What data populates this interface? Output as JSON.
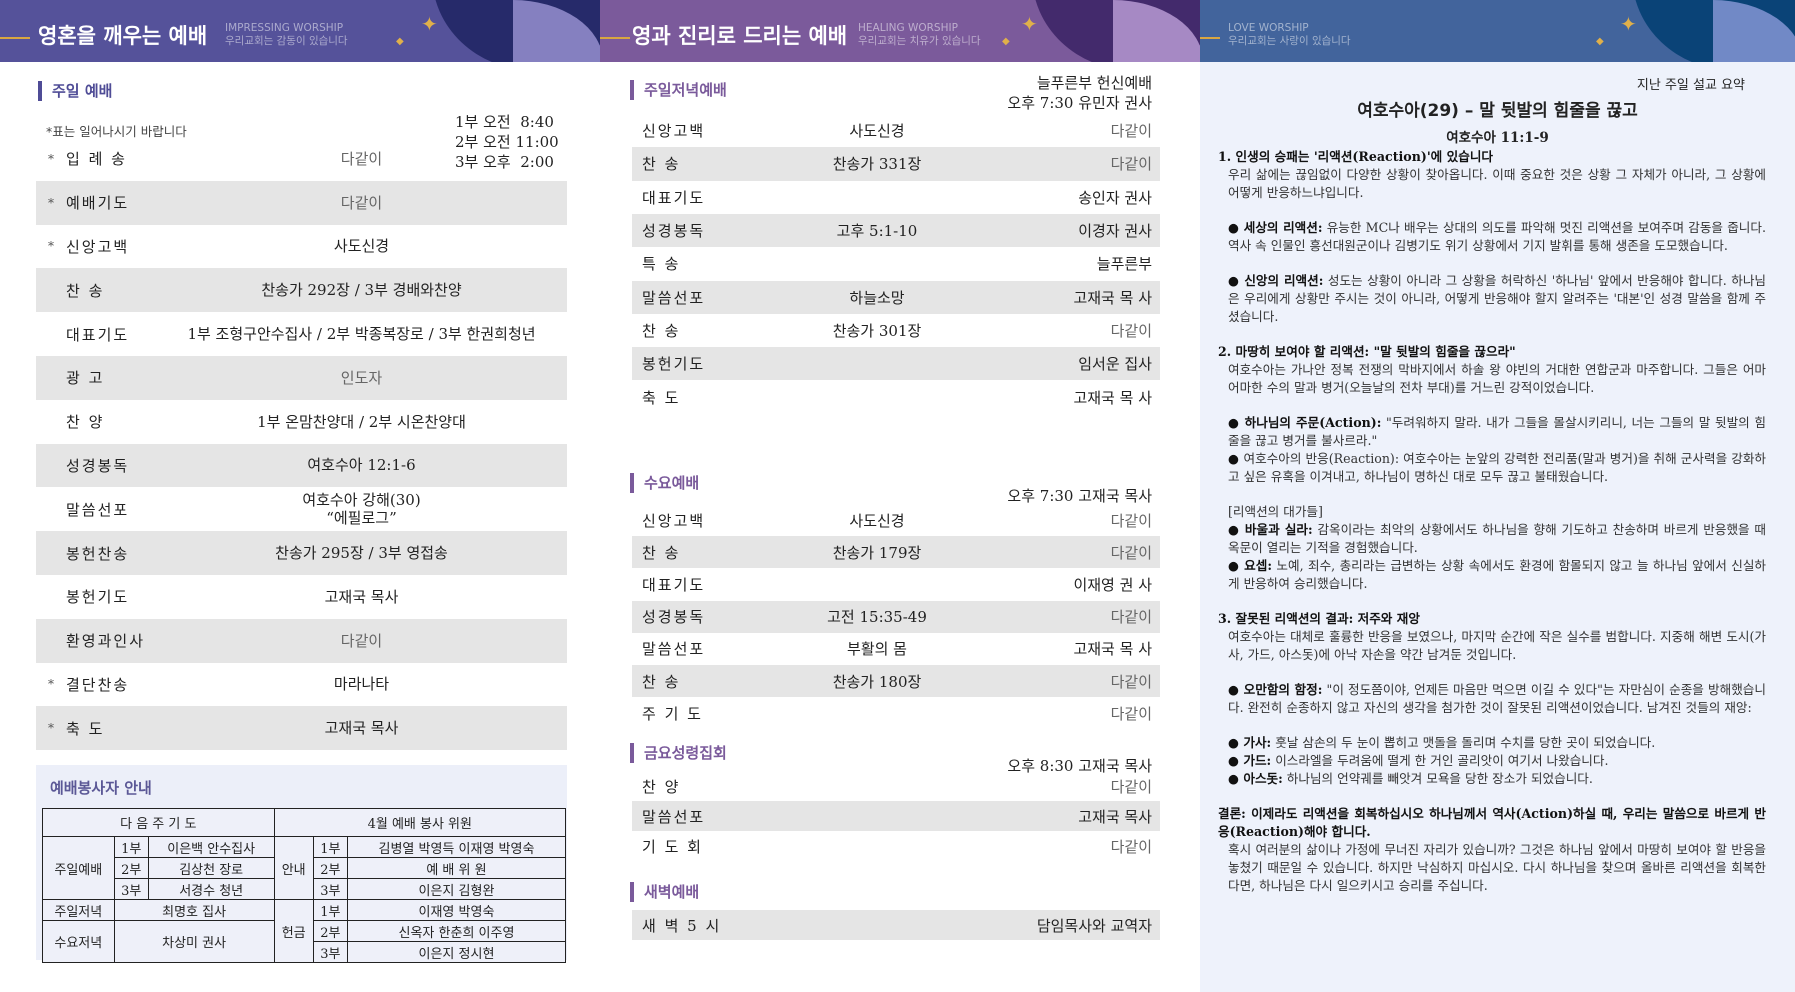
{
  "colors": {
    "left_header": "#55529a",
    "mid_header": "#7b5a9b",
    "right_header": "#42649c",
    "row_shade": "#e5e5e5",
    "accent_gold": "#d9a640"
  },
  "panel1": {
    "header": {
      "title": "영혼을 깨우는 예배",
      "sub_en": "IMPRESSING WORSHIP",
      "sub_ko": "우리교회는 감동이 있습니다"
    },
    "section_title": "주일 예배",
    "times": [
      "1부 오전  8:40",
      "2부 오전 11:00",
      "3부 오후  2:00"
    ],
    "note": "*표는 일어나시기 바랍니다",
    "rows": [
      {
        "star": "*",
        "label": "입 례 송",
        "value": "다같이"
      },
      {
        "star": "*",
        "label": "예배기도",
        "value": "다같이"
      },
      {
        "star": "*",
        "label": "신앙고백",
        "value": "사도신경"
      },
      {
        "star": "",
        "label": "찬    송",
        "value": "찬송가 292장 / 3부 경배와찬양"
      },
      {
        "star": "",
        "label": "대표기도",
        "value": "1부 조형구안수집사 / 2부 박종복장로 / 3부 한권희청년"
      },
      {
        "star": "",
        "label": "광    고",
        "value": "인도자"
      },
      {
        "star": "",
        "label": "찬    양",
        "value": "1부 온맘찬양대 / 2부 시온찬양대"
      },
      {
        "star": "",
        "label": "성경봉독",
        "value": "여호수아 12:1-6"
      },
      {
        "star": "",
        "label": "말씀선포",
        "value": "여호수아 강해(30)\n“에필로그”"
      },
      {
        "star": "",
        "label": "봉헌찬송",
        "value": "찬송가 295장  /  3부 영접송"
      },
      {
        "star": "",
        "label": "봉헌기도",
        "value": "고재국 목사"
      },
      {
        "star": "",
        "label": "환영과인사",
        "value": "다같이"
      },
      {
        "star": "*",
        "label": "결단찬송",
        "value": "마라나타"
      },
      {
        "star": "*",
        "label": "축    도",
        "value": "고재국 목사"
      }
    ],
    "volunteers": {
      "title": "예배봉사자 안내",
      "head_left": "다 음 주 기 도",
      "head_right": "4월 예배 봉사 위원",
      "prayer": [
        {
          "group": "주일예배",
          "part": "1부",
          "name": "이은백 안수집사"
        },
        {
          "group": "주일예배",
          "part": "2부",
          "name": "김상천 장로"
        },
        {
          "group": "주일예배",
          "part": "3부",
          "name": "서경수 청년"
        },
        {
          "group": "주일저녁",
          "part": "",
          "name": "최명호 집사"
        },
        {
          "group": "수요저녁",
          "part": "",
          "name": "차상미 권사"
        }
      ],
      "service": [
        {
          "role": "안내",
          "part": "1부",
          "names": "김병열 박영득 이재영 박영숙"
        },
        {
          "role": "안내",
          "part": "2부",
          "names": "예 배 위 원"
        },
        {
          "role": "안내",
          "part": "3부",
          "names": "이은지 김형완"
        },
        {
          "role": "헌금",
          "part": "1부",
          "names": "이재영 박영숙"
        },
        {
          "role": "헌금",
          "part": "2부",
          "names": "신옥자 한춘희 이주영"
        },
        {
          "role": "헌금",
          "part": "3부",
          "names": "이은지 정시현"
        }
      ]
    }
  },
  "panel2": {
    "header": {
      "title": "영과 진리로 드리는 예배",
      "sub_en": "HEALING WORSHIP",
      "sub_ko": "우리교회는 치유가 있습니다"
    },
    "sunday_evening": {
      "title": "주일저녁예배",
      "info1": "늘푸른부 헌신예배",
      "info2": "오후 7:30 유민자 권사",
      "rows": [
        {
          "label": "신앙고백",
          "value": "사도신경",
          "who": "다같이"
        },
        {
          "label": "찬     송",
          "value": "찬송가 331장",
          "who": "다같이"
        },
        {
          "label": "대표기도",
          "value": "",
          "who": "송인자 권사"
        },
        {
          "label": "성경봉독",
          "value": "고후 5:1-10",
          "who": "이경자 권사"
        },
        {
          "label": "특     송",
          "value": "",
          "who": "늘푸른부"
        },
        {
          "label": "말씀선포",
          "value": "하늘소망",
          "who": "고재국 목  사"
        },
        {
          "label": "찬     송",
          "value": "찬송가 301장",
          "who": "다같이"
        },
        {
          "label": "봉헌기도",
          "value": "",
          "who": "임서운 집사"
        },
        {
          "label": "축     도",
          "value": "",
          "who": "고재국 목  사"
        }
      ]
    },
    "wednesday": {
      "title": "수요예배",
      "info": "오후 7:30 고재국 목사",
      "rows": [
        {
          "label": "신앙고백",
          "value": "사도신경",
          "who": "다같이"
        },
        {
          "label": "찬     송",
          "value": "찬송가 179장",
          "who": "다같이"
        },
        {
          "label": "대표기도",
          "value": "",
          "who": "이재영 권  사"
        },
        {
          "label": "성경봉독",
          "value": "고전 15:35-49",
          "who": "다같이"
        },
        {
          "label": "말씀선포",
          "value": "부활의 몸",
          "who": "고재국 목  사"
        },
        {
          "label": "찬     송",
          "value": "찬송가 180장",
          "who": "다같이"
        },
        {
          "label": "주 기 도",
          "value": "",
          "who": "다같이"
        }
      ]
    },
    "friday": {
      "title": "금요성령집회",
      "info": "오후 8:30 고재국 목사",
      "rows": [
        {
          "label": "찬     양",
          "value": "",
          "who": "다같이"
        },
        {
          "label": "말씀선포",
          "value": "",
          "who": "고재국 목사"
        },
        {
          "label": "기 도 회",
          "value": "",
          "who": "다같이"
        }
      ]
    },
    "dawn": {
      "title": "새벽예배",
      "rows": [
        {
          "label": "새 벽 5 시",
          "value": "",
          "who": "담임목사와 교역자"
        }
      ]
    }
  },
  "panel3": {
    "header": {
      "sub_en": "LOVE WORSHIP",
      "sub_ko": "우리교회는 사랑이 있습니다"
    },
    "kicker": "지난 주일 설교 요약",
    "title": "여호수아(29) – 말 뒷발의 힘줄을 끊고",
    "scripture": "여호수아  11:1-9",
    "blocks": [
      {
        "type": "h",
        "text": "1. 인생의 승패는 '리액션(Reaction)'에 있습니다"
      },
      {
        "type": "p",
        "text": "우리 삶에는 끊임없이 다양한 상황이 찾아옵니다. 이때 중요한 것은 상황 그 자체가 아니라, 그 상황에 어떻게 반응하느냐입니다."
      },
      {
        "type": "gap"
      },
      {
        "type": "b",
        "lead": "● 세상의 리액션:",
        "text": " 유능한 MC나 배우는 상대의 의도를 파악해 멋진 리액션을 보여주며 감동을 줍니다. 역사 속 인물인 흥선대원군이나 김병기도 위기 상황에서 기지 발휘를 통해 생존을 도모했습니다."
      },
      {
        "type": "gap"
      },
      {
        "type": "b",
        "lead": "● 신앙의 리액션:",
        "text": " 성도는 상황이 아니라 그 상황을 허락하신 '하나님' 앞에서 반응해야 합니다. 하나님은 우리에게 상황만 주시는 것이 아니라, 어떻게 반응해야 할지 알려주는 '대본'인 성경 말씀을 함께 주셨습니다."
      },
      {
        "type": "gap"
      },
      {
        "type": "h",
        "text": "2. 마땅히 보여야 할 리액션: \"말 뒷발의 힘줄을 끊으라\""
      },
      {
        "type": "p",
        "text": "여호수아는 가나안 정복 전쟁의 막바지에서 하솔 왕 야빈의 거대한 연합군과 마주합니다. 그들은 어마어마한 수의 말과 병거(오늘날의 전차 부대)를 거느린 강적이었습니다."
      },
      {
        "type": "gap"
      },
      {
        "type": "b",
        "lead": "● 하나님의 주문(Action):",
        "text": " \"두려워하지 말라. 내가 그들을 몰살시키리니, 너는 그들의 말 뒷발의 힘줄을 끊고 병거를 불사르라.\""
      },
      {
        "type": "b",
        "lead": "● ",
        "text": "여호수아의 반응(Reaction): 여호수아는 눈앞의 강력한 전리품(말과 병거)을 취해 군사력을 강화하고 싶은 유혹을 이겨내고, 하나님이 명하신 대로 모두 끊고 불태웠습니다."
      },
      {
        "type": "gap"
      },
      {
        "type": "p",
        "text": "[리액션의 대가들]"
      },
      {
        "type": "b",
        "lead": "● 바울과 실라:",
        "text": " 감옥이라는 최악의 상황에서도 하나님을 향해 기도하고 찬송하며 바르게 반응했을 때 옥문이 열리는 기적을 경험했습니다."
      },
      {
        "type": "b",
        "lead": "● 요셉:",
        "text": " 노예, 죄수, 총리라는 급변하는 상황 속에서도 환경에 함몰되지 않고 늘 하나님 앞에서 신실하게 반응하여 승리했습니다."
      },
      {
        "type": "gap"
      },
      {
        "type": "h",
        "text": "3. 잘못된 리액션의 결과: 저주와 재앙"
      },
      {
        "type": "p",
        "text": "여호수아는 대체로 훌륭한 반응을 보였으나, 마지막 순간에 작은 실수를 범합니다. 지중해 해변 도시(가사, 가드, 아스돗)에 아낙 자손을 약간 남겨둔 것입니다."
      },
      {
        "type": "gap"
      },
      {
        "type": "b",
        "lead": "● 오만함의 함정:",
        "text": " \"이 정도쯤이야, 언제든 마음만 먹으면 이길 수 있다\"는 자만심이 순종을 방해했습니다. 완전히 순종하지 않고 자신의 생각을 첨가한 것이 잘못된 리액션이었습니다. 남겨진 것들의 재앙:"
      },
      {
        "type": "gap"
      },
      {
        "type": "b",
        "lead": "● 가사:",
        "text": " 훗날 삼손의 두 눈이 뽑히고 맷돌을 돌리며 수치를 당한 곳이 되었습니다."
      },
      {
        "type": "b",
        "lead": "● 가드:",
        "text": " 이스라엘을 두려움에 떨게 한 거인 골리앗이 여기서 나왔습니다."
      },
      {
        "type": "b",
        "lead": "● 아스돗:",
        "text": " 하나님의 언약궤를 빼앗겨 모욕을 당한 장소가 되었습니다."
      },
      {
        "type": "gap"
      },
      {
        "type": "h",
        "text": "결론: 이제라도 리액션을 회복하십시오 하나님께서 역사(Action)하실 때, 우리는 말씀으로 바르게 반응(Reaction)해야 합니다."
      },
      {
        "type": "p",
        "text": "혹시 여러분의 삶이나 가정에 무너진 자리가 있습니까? 그것은 하나님 앞에서 마땅히 보여야 할 반응을 놓쳤기 때문일 수 있습니다. 하지만 낙심하지 마십시오. 다시 하나님을 찾으며 올바른 리액션을 회복한다면, 하나님은 다시 일으키시고 승리를 주십니다."
      }
    ]
  }
}
